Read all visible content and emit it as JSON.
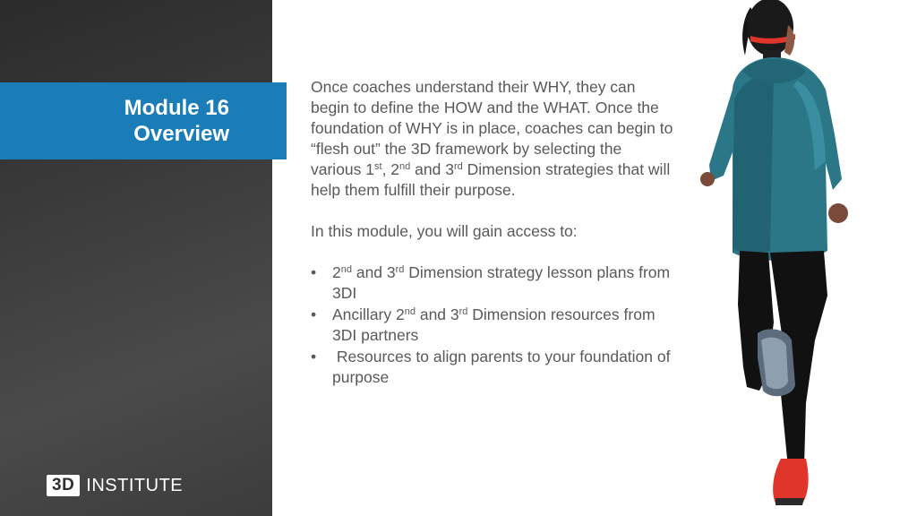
{
  "slide": {
    "title_line1": "Module 16",
    "title_line2": "Overview"
  },
  "logo": {
    "mark": "3D",
    "word": "INSTITUTE"
  },
  "body": {
    "p1": {
      "a": "Once coaches understand their WHY, they can begin to define the HOW and the WHAT. Once the foundation of WHY is in place, coaches can begin to “flesh out” the 3D framework by selecting the various 1",
      "s1": "st",
      "b": ", 2",
      "s2": "nd",
      "c": " and 3",
      "s3": "rd",
      "d": " Dimension strategies that will help them fulfill their purpose."
    },
    "intro": "In this module, you will gain access to:",
    "bullet_symbol": "•",
    "bullets": [
      {
        "a": "2",
        "s1": "nd",
        "b": " and 3",
        "s2": "rd",
        "c": " Dimension strategy lesson plans from 3DI"
      },
      {
        "a": "Ancillary 2",
        "s1": "nd",
        "b": " and 3",
        "s2": "rd",
        "c": " Dimension resources from 3DI partners"
      },
      {
        "text": " Resources to align parents to your foundation of purpose"
      }
    ]
  },
  "colors": {
    "accent": "#1a7db8",
    "sidebar": "#3a3a3a",
    "body_text": "#595959"
  },
  "image": {
    "icon": "runner-photo"
  }
}
